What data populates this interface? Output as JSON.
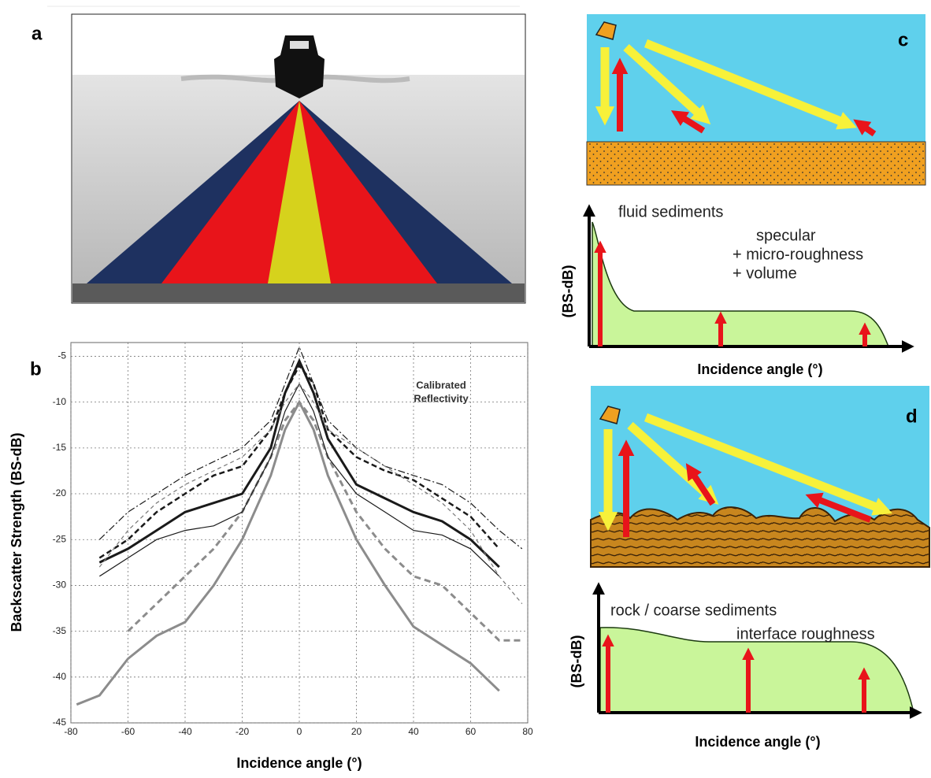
{
  "panel_a": {
    "label": "a"
  },
  "chart_data": {
    "type": "line",
    "label": "b",
    "annotation": [
      "Calibrated",
      "Reflectivity"
    ],
    "x_label": "Incidence angle (°)",
    "y_label": "Backscatter Strength (BS-dB)",
    "x": [
      -78,
      -70,
      -60,
      -50,
      -40,
      -30,
      -20,
      -10,
      -5,
      0,
      5,
      10,
      20,
      30,
      40,
      50,
      60,
      70,
      78
    ],
    "series": [
      {
        "color": "#8c8c8c",
        "width": 3,
        "dash": "none",
        "values": [
          -43,
          -42,
          -38,
          -35.5,
          -34,
          -30,
          -25,
          -18,
          -13,
          -10,
          -13,
          -18,
          -25,
          -30,
          -34.5,
          -36.5,
          -38.5,
          -41.5,
          null
        ]
      },
      {
        "color": "#8c8c8c",
        "width": 3,
        "dash": "8 5",
        "values": [
          null,
          null,
          -35,
          -32,
          -29,
          -26,
          -22,
          -16,
          -12,
          -10,
          -12,
          -16,
          -22,
          -26,
          -29,
          -30,
          -33,
          -36,
          -36
        ]
      },
      {
        "color": "#1a1a1a",
        "width": 3,
        "dash": "none",
        "values": [
          null,
          -27.5,
          -26,
          -24,
          -22,
          -21,
          -20,
          -15,
          -9,
          -5.5,
          -9,
          -14,
          -19,
          -20.5,
          -22,
          -23,
          -25,
          -28,
          null
        ]
      },
      {
        "color": "#1a1a1a",
        "width": 1.2,
        "dash": "none",
        "values": [
          null,
          -29,
          -27,
          -25,
          -24,
          -23.5,
          -22,
          -16,
          -11,
          -8,
          -11,
          -16,
          -20,
          -22,
          -24,
          -24.5,
          -26,
          -29,
          null
        ]
      },
      {
        "color": "#1a1a1a",
        "width": 2.5,
        "dash": "7 4",
        "values": [
          null,
          -27,
          -25,
          -22,
          -20,
          -18,
          -17,
          -13,
          -9,
          -6,
          -8,
          -13,
          -16,
          -17.5,
          -18.5,
          -20.5,
          -22.5,
          -26,
          null
        ]
      },
      {
        "color": "#1a1a1a",
        "width": 1.2,
        "dash": "9 3 2 3",
        "values": [
          null,
          -25,
          -22,
          -20,
          -18,
          -16.5,
          -15,
          -12,
          -8,
          -4,
          -8,
          -12,
          -15,
          -17,
          -18,
          -19,
          -21,
          -24,
          -26
        ]
      },
      {
        "color": "#777777",
        "width": 1.2,
        "dash": "5 4",
        "values": [
          null,
          -28,
          -24,
          -21,
          -19,
          -17.5,
          -16,
          -13,
          -10,
          -8,
          -10,
          -13,
          -15,
          -17,
          -19,
          -21,
          -24,
          -29,
          -32
        ]
      }
    ],
    "xlim": [
      -80,
      80
    ],
    "xticks": [
      -80,
      -60,
      -40,
      -20,
      0,
      20,
      40,
      60,
      80
    ],
    "ylim": [
      -45,
      -3.5
    ],
    "yticks": [
      -45,
      -40,
      -35,
      -30,
      -25,
      -20,
      -15,
      -10,
      -5
    ],
    "grid": true
  },
  "panel_c": {
    "label": "c",
    "title": "fluid sediments",
    "lines": [
      "specular",
      "+ micro-roughness",
      "+ volume"
    ],
    "y_label": "(BS-dB)",
    "x_label": "Incidence angle (°)"
  },
  "panel_d": {
    "label": "d",
    "title": "rock / coarse sediments",
    "lines": [
      "interface roughness"
    ],
    "y_label": "(BS-dB)",
    "x_label": "Incidence angle (°)"
  }
}
